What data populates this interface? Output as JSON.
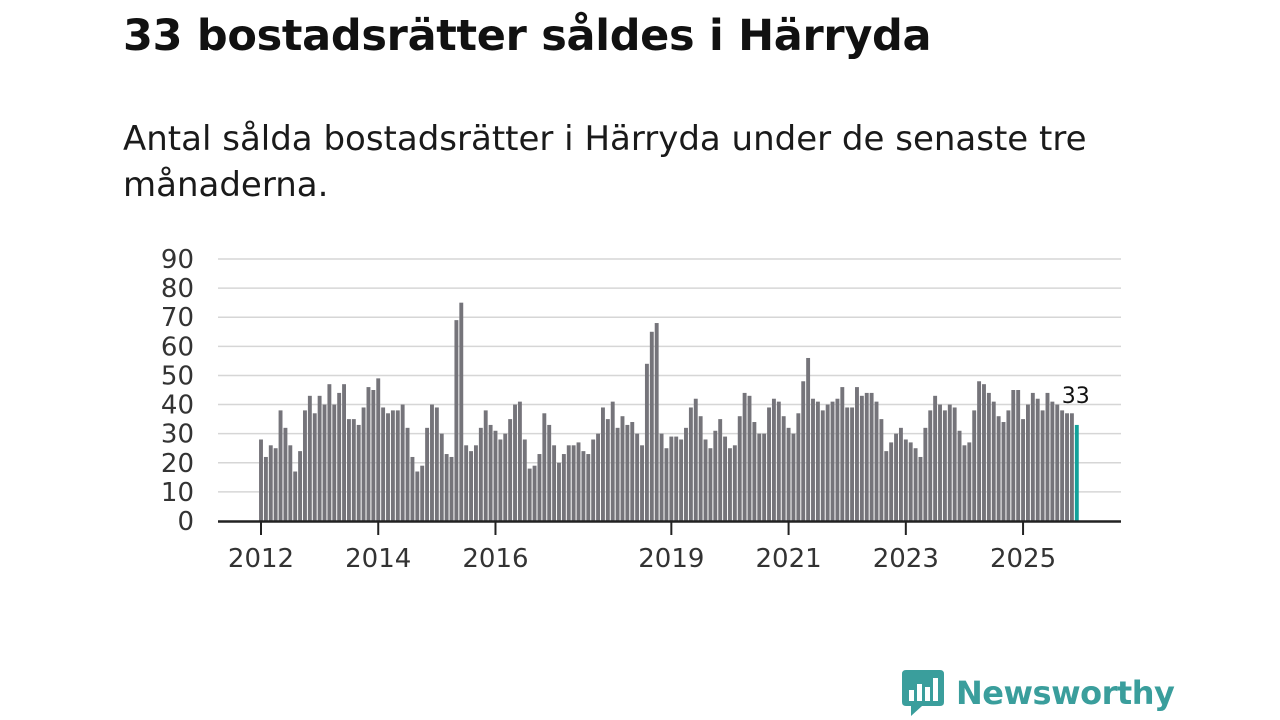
{
  "title": "33 bostadsrätter såldes i Härryda",
  "subtitle": "Antal sålda bostadsrätter i Härryda under de senaste tre månaderna.",
  "brand": {
    "name": "Newsworthy",
    "icon": "newsworthy-logo-icon",
    "color": "#3a9e9c"
  },
  "colors": {
    "bar": "#75747a",
    "highlight": "#12a19a",
    "grid": "#d6d6d6",
    "axis": "#222222"
  },
  "chart_data": {
    "type": "bar",
    "title": "Antal sålda bostadsrätter i Härryda",
    "xlabel": "",
    "ylabel": "",
    "ylim": [
      0,
      90
    ],
    "yticks": [
      0,
      10,
      20,
      30,
      40,
      50,
      60,
      70,
      80,
      90
    ],
    "grid": true,
    "start_year": 2012,
    "start_month": 1,
    "year_ticks": [
      {
        "year": 2012,
        "label": "2012"
      },
      {
        "year": 2014,
        "label": "2014"
      },
      {
        "year": 2016,
        "label": "2016"
      },
      {
        "year": 2019,
        "label": "2019"
      },
      {
        "year": 2021,
        "label": "2021"
      },
      {
        "year": 2023,
        "label": "2023"
      },
      {
        "year": 2025,
        "label": "2025"
      }
    ],
    "values": [
      28,
      22,
      26,
      25,
      38,
      32,
      26,
      17,
      24,
      38,
      43,
      37,
      43,
      40,
      47,
      40,
      44,
      47,
      35,
      35,
      33,
      39,
      46,
      45,
      49,
      39,
      37,
      38,
      38,
      40,
      32,
      22,
      17,
      19,
      32,
      40,
      39,
      30,
      23,
      22,
      69,
      75,
      26,
      24,
      26,
      32,
      38,
      33,
      31,
      28,
      30,
      35,
      40,
      41,
      28,
      18,
      19,
      23,
      37,
      33,
      26,
      20,
      23,
      26,
      26,
      27,
      24,
      23,
      28,
      30,
      39,
      35,
      41,
      32,
      36,
      33,
      34,
      30,
      26,
      54,
      65,
      68,
      30,
      25,
      29,
      29,
      28,
      32,
      39,
      42,
      36,
      28,
      25,
      31,
      35,
      29,
      25,
      26,
      36,
      44,
      43,
      34,
      30,
      30,
      39,
      42,
      41,
      36,
      32,
      30,
      37,
      48,
      56,
      42,
      41,
      38,
      40,
      41,
      42,
      46,
      39,
      39,
      46,
      43,
      44,
      44,
      41,
      35,
      24,
      27,
      30,
      32,
      28,
      27,
      25,
      22,
      32,
      38,
      43,
      40,
      38,
      40,
      39,
      31,
      26,
      27,
      38,
      48,
      47,
      44,
      41,
      36,
      34,
      38,
      45,
      45,
      35,
      40,
      44,
      42,
      38,
      44,
      41,
      40,
      38,
      37,
      37,
      33
    ],
    "highlight_index": 167,
    "highlight_label": "33"
  }
}
